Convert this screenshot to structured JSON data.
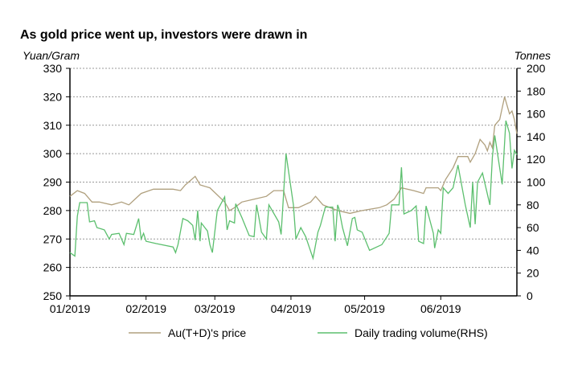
{
  "chart_data": {
    "type": "line",
    "title": "As gold price went up, investors were drawn in",
    "ylabel": "Yuan/Gram",
    "y2label": "Tonnes",
    "xlabel": "",
    "x_unit": "days since 01/01/2019",
    "xlim": [
      0,
      182
    ],
    "ylim": [
      250,
      330
    ],
    "y2lim": [
      0,
      200
    ],
    "yticks": [
      250,
      260,
      270,
      280,
      290,
      300,
      310,
      320,
      330
    ],
    "y2ticks": [
      0,
      20,
      40,
      60,
      80,
      100,
      120,
      140,
      160,
      180,
      200
    ],
    "xticks": [
      {
        "day": 0,
        "label": "01/2019"
      },
      {
        "day": 31,
        "label": "02/2019"
      },
      {
        "day": 59,
        "label": "03/2019"
      },
      {
        "day": 90,
        "label": "04/2019"
      },
      {
        "day": 120,
        "label": "05/2019"
      },
      {
        "day": 151,
        "label": "06/2019"
      }
    ],
    "grid": true,
    "legend_position": "bottom",
    "series": [
      {
        "name": "Au(T+D)'s price",
        "axis": "left",
        "color": "#b0a07e",
        "x": [
          0,
          3,
          6,
          9,
          12,
          17,
          21,
          24,
          29,
          34,
          42,
          45,
          47,
          51,
          53,
          57,
          63,
          65,
          67,
          70,
          75,
          80,
          83,
          87,
          89,
          93,
          98,
          100,
          103,
          109,
          114,
          119,
          126,
          129,
          132,
          135,
          140,
          144,
          145,
          150,
          151,
          153,
          156,
          158,
          162,
          163,
          165,
          167,
          169,
          170,
          171,
          172,
          173,
          175,
          177,
          179,
          180,
          181,
          182
        ],
        "y": [
          285,
          287,
          286,
          283,
          283,
          282,
          283,
          282,
          286,
          287.5,
          287.5,
          287,
          289,
          292,
          289,
          288,
          283,
          280,
          281,
          283,
          284,
          285,
          287,
          287,
          281,
          281,
          283,
          285,
          282,
          280,
          279,
          280,
          281,
          282,
          284,
          288,
          287,
          286,
          288,
          288,
          287,
          291,
          295,
          299,
          299,
          297,
          300,
          305,
          303,
          301,
          304,
          302,
          310,
          312,
          320,
          314,
          315,
          312,
          307
        ]
      },
      {
        "name": "Daily trading volume(RHS)",
        "axis": "right",
        "color": "#5cbf6e",
        "x": [
          0,
          2,
          3,
          4,
          7,
          8,
          10,
          11,
          14,
          16,
          17,
          20,
          22,
          23,
          26,
          28,
          29,
          30,
          31,
          35,
          42,
          43,
          44,
          46,
          48,
          50,
          51,
          52,
          53,
          53.5,
          56,
          57,
          58,
          60,
          63,
          64,
          65,
          67,
          67.5,
          70,
          73,
          75,
          76,
          78,
          80,
          81,
          85,
          86,
          88,
          91,
          92,
          94,
          96,
          99,
          101,
          102,
          104,
          107,
          108,
          109,
          109.5,
          111,
          113,
          115,
          116,
          117,
          119,
          122,
          127,
          130,
          131,
          134,
          135,
          136,
          139,
          141,
          142,
          144,
          145,
          148,
          148.5,
          150,
          151,
          152,
          154,
          156,
          158,
          161,
          163,
          164,
          165,
          166,
          168,
          171,
          172,
          173,
          176,
          177.5,
          179,
          180,
          181,
          182
        ],
        "y": [
          38,
          35,
          70,
          82,
          82,
          65,
          66,
          60,
          58,
          50,
          54,
          55,
          45,
          55,
          54,
          68,
          50,
          55,
          48,
          46,
          43,
          38,
          45,
          68,
          66,
          62,
          49,
          75,
          48,
          64,
          57,
          45,
          38,
          75,
          87,
          58,
          66,
          64,
          81,
          69,
          53,
          52,
          80,
          56,
          50,
          80,
          65,
          54,
          125,
          80,
          50,
          60,
          52,
          33,
          56,
          62,
          78,
          78,
          48,
          80,
          77,
          60,
          44,
          68,
          69,
          58,
          56,
          40,
          45,
          55,
          80,
          80,
          113,
          72,
          75,
          79,
          48,
          46,
          79,
          55,
          42,
          58,
          55,
          95,
          90,
          95,
          115,
          80,
          60,
          100,
          63,
          100,
          108,
          80,
          122,
          141,
          98,
          154,
          143,
          112,
          128,
          124
        ]
      }
    ]
  }
}
